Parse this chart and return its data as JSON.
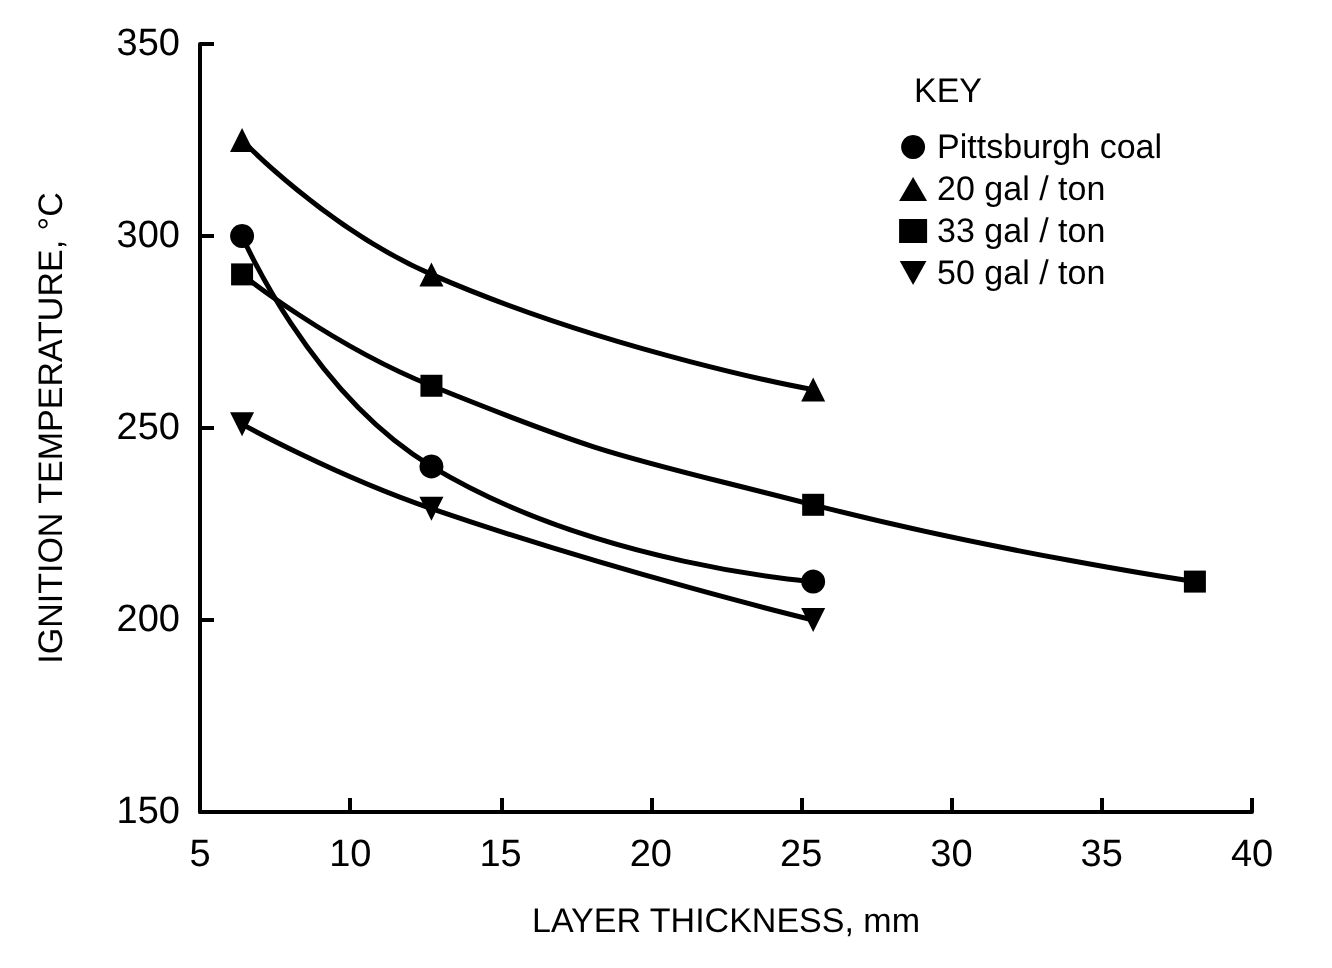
{
  "chart_data": {
    "type": "line",
    "xlabel": "LAYER THICKNESS, mm",
    "ylabel": "IGNITION TEMPERATURE, °C",
    "legend_title": "KEY",
    "legend": "top right",
    "grid": false,
    "line_style": "solid",
    "xlim": [
      5,
      40
    ],
    "xticks": [
      5,
      10,
      15,
      20,
      25,
      30,
      35,
      40
    ],
    "ylim": [
      150,
      350
    ],
    "yticks": [
      150,
      200,
      250,
      300,
      350
    ],
    "series": [
      {
        "name": "Pittsburgh coal",
        "color": "#000000",
        "marker": "circle",
        "x": [
          6.4,
          12.7,
          25.4
        ],
        "values": [
          300,
          240,
          210
        ]
      },
      {
        "name": "20 gal / ton",
        "color": "#000000",
        "marker": "triangle",
        "x": [
          6.4,
          12.7,
          25.4
        ],
        "values": [
          325,
          290,
          260
        ]
      },
      {
        "name": "33 gal / ton",
        "color": "#000000",
        "marker": "square",
        "x": [
          6.4,
          12.7,
          25.4,
          38.1
        ],
        "values": [
          290,
          261,
          230,
          210
        ]
      },
      {
        "name": "50 gal / ton",
        "color": "#000000",
        "marker": "triangle-down",
        "x": [
          6.4,
          12.7,
          25.4
        ],
        "values": [
          251,
          229,
          200
        ]
      }
    ]
  }
}
